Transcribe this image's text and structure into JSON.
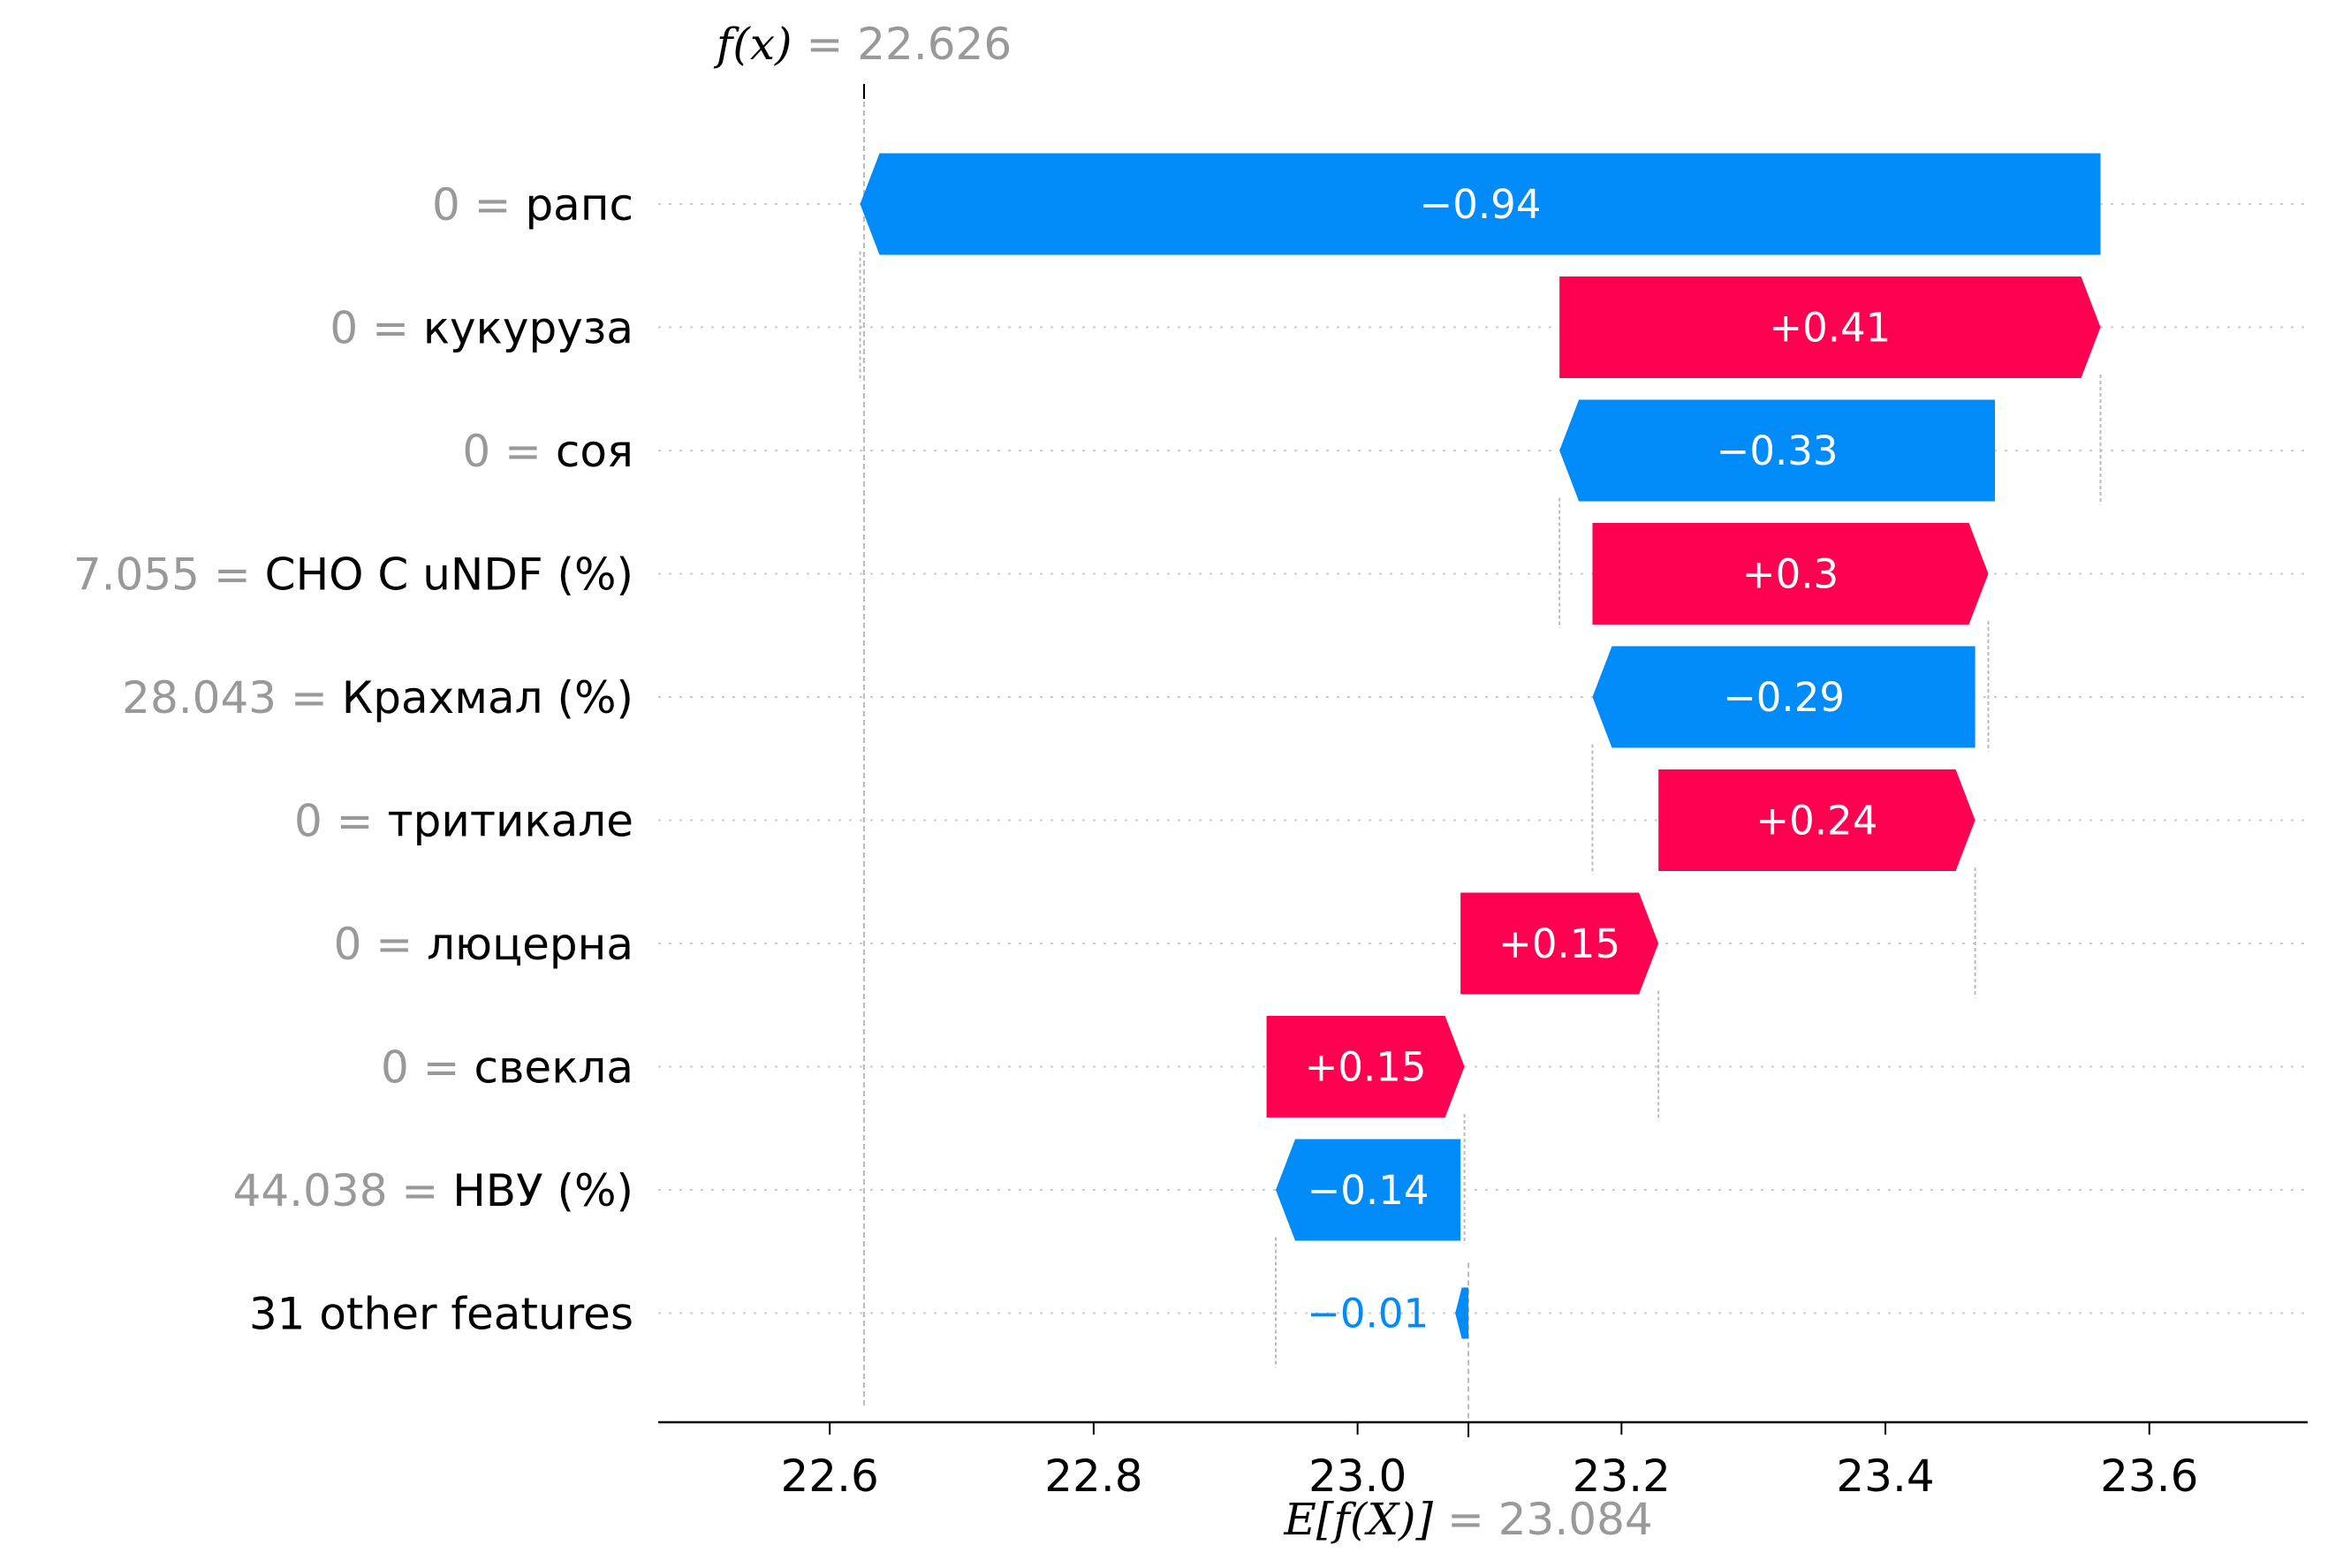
{
  "chart_data": {
    "type": "waterfall",
    "fx": {
      "expression": "f(x)",
      "value_text": "= 22.626",
      "value": 22.626
    },
    "base": {
      "expression": "E[f(X)]",
      "value_text": "= 23.084",
      "value": 23.084
    },
    "xlim": [
      22.47,
      23.72
    ],
    "xticks": [
      {
        "value": 22.6,
        "label": "22.6"
      },
      {
        "value": 22.8,
        "label": "22.8"
      },
      {
        "value": 23.0,
        "label": "23.0"
      },
      {
        "value": 23.2,
        "label": "23.2"
      },
      {
        "value": 23.4,
        "label": "23.4"
      },
      {
        "value": 23.6,
        "label": "23.6"
      }
    ],
    "colors": {
      "positive": "#ff0051",
      "negative": "#008bfb",
      "value_gray": "#999999"
    },
    "rows": [
      {
        "feature_value": "0",
        "feature": "рапс",
        "contribution": -0.94,
        "start": 23.563,
        "label": "−0.94"
      },
      {
        "feature_value": "0",
        "feature": "кукуруза",
        "contribution": 0.41,
        "start": 23.153,
        "label": "+0.41"
      },
      {
        "feature_value": "0",
        "feature": "соя",
        "contribution": -0.33,
        "start": 23.483,
        "label": "−0.33"
      },
      {
        "feature_value": "7.055",
        "feature": "CHO C uNDF (%)",
        "contribution": 0.3,
        "start": 23.178,
        "label": "+0.3"
      },
      {
        "feature_value": "28.043",
        "feature": "Крахмал (%)",
        "contribution": -0.29,
        "start": 23.468,
        "label": "−0.29"
      },
      {
        "feature_value": "0",
        "feature": "тритикале",
        "contribution": 0.24,
        "start": 23.228,
        "label": "+0.24"
      },
      {
        "feature_value": "0",
        "feature": "люцерна",
        "contribution": 0.15,
        "start": 23.078,
        "label": "+0.15"
      },
      {
        "feature_value": "0",
        "feature": "свекла",
        "contribution": 0.15,
        "start": 22.931,
        "label": "+0.15"
      },
      {
        "feature_value": "44.038",
        "feature": "НВУ (%)",
        "contribution": -0.14,
        "start": 23.078,
        "label": "−0.14"
      },
      {
        "feature_value": "",
        "feature": "31 other features",
        "contribution": -0.01,
        "start": 23.084,
        "label": "−0.01"
      }
    ]
  }
}
